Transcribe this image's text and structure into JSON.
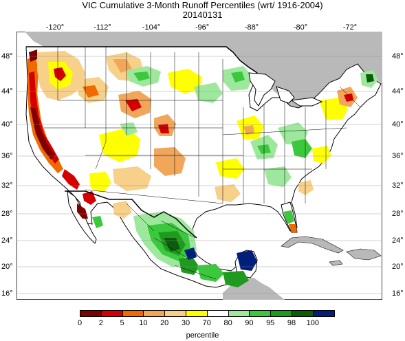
{
  "title": "VIC Cumulative 3-Month Runoff Percentiles (wrt/ 1916-2004)",
  "subtitle": "20140131",
  "lon_labels": [
    "-120°",
    "-112°",
    "-104°",
    "-96°",
    "-88°",
    "-80°",
    "-72°"
  ],
  "lat_labels": [
    "48°",
    "44°",
    "40°",
    "36°",
    "32°",
    "28°",
    "24°",
    "20°",
    "16°"
  ],
  "colorbar": {
    "title": "percentile",
    "tick_labels": [
      "0",
      "2",
      "5",
      "10",
      "20",
      "30",
      "70",
      "80",
      "90",
      "95",
      "98",
      "100"
    ],
    "colors": [
      "#7f0000",
      "#d40000",
      "#f06a00",
      "#f2a65a",
      "#f7d08a",
      "#ffff00",
      "#ffffff",
      "#9ee89e",
      "#3cc83c",
      "#1f9a1f",
      "#0b5d0b",
      "#001e7a"
    ]
  },
  "colors": {
    "ocean": "#ffffff",
    "outside_land": "#b9b9b9",
    "borders": "#000000"
  }
}
